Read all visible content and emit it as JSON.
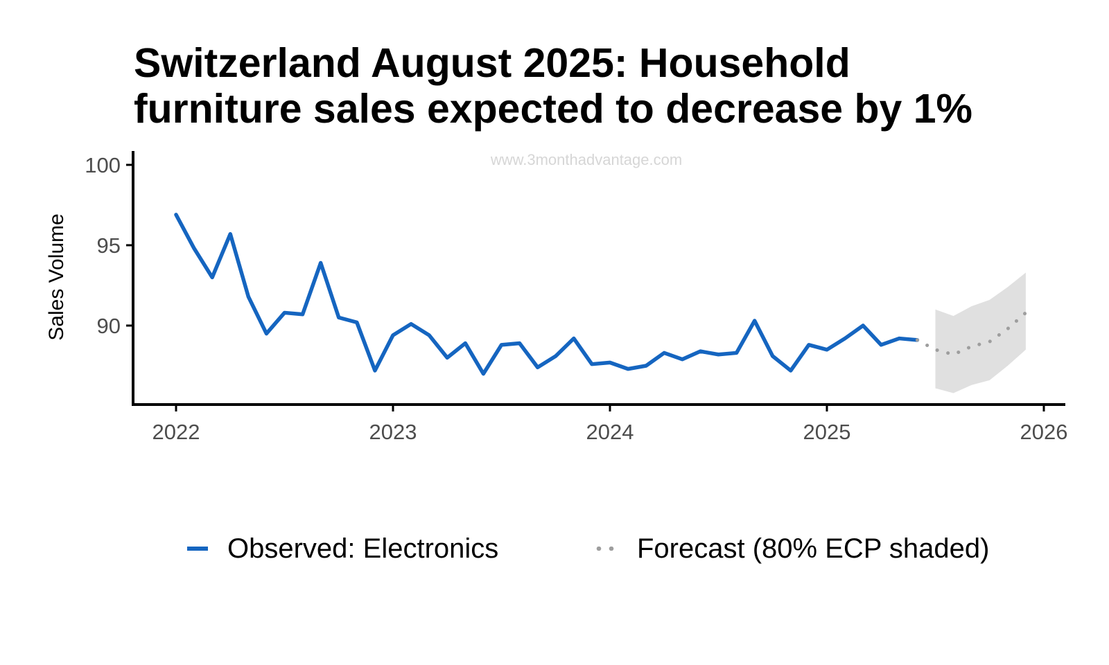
{
  "title_lines": [
    "Switzerland August 2025: Household",
    "furniture sales expected to decrease by 1%"
  ],
  "watermark": "www.3monthadvantage.com",
  "legend": {
    "observed": "Observed: Electronics",
    "forecast": "Forecast (80% ECP shaded)"
  },
  "colors": {
    "observed": "#1565c0",
    "forecast": "#9e9e9e",
    "band": "#e0e0e0",
    "axis": "#000000"
  },
  "chart_data": {
    "type": "line",
    "ylabel": "Sales Volume",
    "xlabel": "",
    "x_ticks": [
      "2022",
      "2023",
      "2024",
      "2025",
      "2026"
    ],
    "y_ticks": [
      "90",
      "95",
      "100"
    ],
    "xlim": [
      "2021-11-01",
      "2026-01-01"
    ],
    "ylim": [
      85,
      101
    ],
    "grid": false,
    "legend_position": "bottom",
    "series": [
      {
        "name": "Observed: Electronics",
        "style": "solid",
        "x": [
          "2022-01",
          "2022-02",
          "2022-03",
          "2022-04",
          "2022-05",
          "2022-06",
          "2022-07",
          "2022-08",
          "2022-09",
          "2022-10",
          "2022-11",
          "2022-12",
          "2023-01",
          "2023-02",
          "2023-03",
          "2023-04",
          "2023-05",
          "2023-06",
          "2023-07",
          "2023-08",
          "2023-09",
          "2023-10",
          "2023-11",
          "2023-12",
          "2024-01",
          "2024-02",
          "2024-03",
          "2024-04",
          "2024-05",
          "2024-06",
          "2024-07",
          "2024-08",
          "2024-09",
          "2024-10",
          "2024-11",
          "2024-12",
          "2025-01",
          "2025-02",
          "2025-03",
          "2025-04",
          "2025-05",
          "2025-06"
        ],
        "values": [
          96.9,
          94.8,
          93.0,
          95.7,
          91.8,
          89.5,
          90.8,
          90.7,
          93.9,
          90.5,
          90.2,
          87.2,
          89.4,
          90.1,
          89.4,
          88.0,
          88.9,
          87.0,
          88.8,
          88.9,
          87.4,
          88.1,
          89.2,
          87.6,
          87.7,
          87.3,
          87.5,
          88.3,
          87.9,
          88.4,
          88.2,
          88.3,
          90.3,
          88.1,
          87.2,
          88.8,
          88.5,
          89.2,
          90.0,
          88.8,
          89.2,
          89.1
        ]
      },
      {
        "name": "Forecast (80% ECP shaded)",
        "style": "dotted",
        "x": [
          "2025-06",
          "2025-07",
          "2025-08",
          "2025-09",
          "2025-10",
          "2025-11",
          "2025-12"
        ],
        "values": [
          89.1,
          88.5,
          88.2,
          88.7,
          89.0,
          89.8,
          90.8
        ],
        "lower": [
          null,
          86.1,
          85.8,
          86.3,
          86.6,
          87.5,
          88.5
        ],
        "upper": [
          null,
          91.0,
          90.6,
          91.2,
          91.6,
          92.4,
          93.3
        ]
      }
    ]
  }
}
